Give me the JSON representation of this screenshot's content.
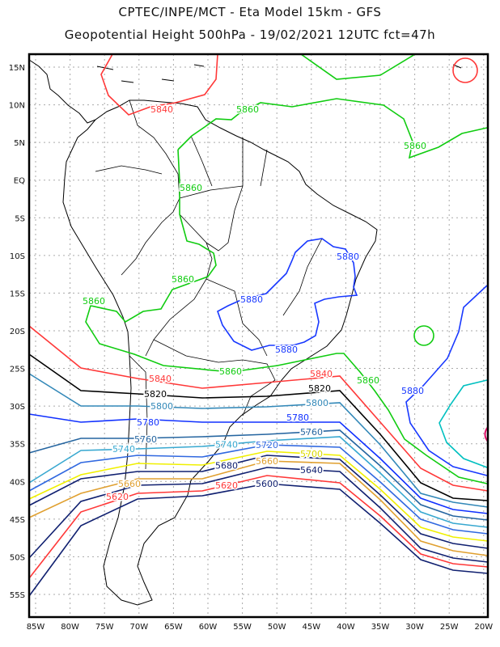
{
  "header": {
    "line1": "CPTEC/INPE/MCT -  Eta Model 15km - GFS",
    "line2": "Geopotential Height 500hPa - 19/02/2021 12UTC fct=47h"
  },
  "axes": {
    "lat_labels": [
      "15N",
      "10N",
      "5N",
      "EQ",
      "5S",
      "10S",
      "15S",
      "20S",
      "25S",
      "30S",
      "35S",
      "40S",
      "45S",
      "50S",
      "55S"
    ],
    "lon_labels": [
      "85W",
      "80W",
      "75W",
      "70W",
      "65W",
      "60W",
      "55W",
      "50W",
      "45W",
      "40W",
      "35W",
      "30W",
      "25W",
      "20W"
    ]
  },
  "colors": {
    "c5920": "#e0106a",
    "c5900": "#00c0c0",
    "c5880": "#1838ff",
    "c5860": "#10cc10",
    "c5840": "#ff3838",
    "c5820": "#000000",
    "c5800": "#3288b8",
    "c5780": "#1030ff",
    "c5760": "#2565a0",
    "c5740": "#38a8d0",
    "c5720": "#3068e0",
    "c5700": "#f0f000",
    "c5680": "#102070",
    "c5660": "#e0a030",
    "c5640": "#102070",
    "c5620": "#ff3838",
    "c5600": "#102070"
  },
  "contour_levels": [
    "5840",
    "5820",
    "5800",
    "5780",
    "5760",
    "5740",
    "5720",
    "5700",
    "5680",
    "5660",
    "5640",
    "5620",
    "5600"
  ],
  "contour_labels": [
    {
      "text": "5840",
      "color": "#ff3838"
    },
    {
      "text": "5860",
      "color": "#10cc10"
    },
    {
      "text": "5860",
      "color": "#10cc10"
    },
    {
      "text": "5860",
      "color": "#10cc10"
    },
    {
      "text": "5860",
      "color": "#10cc10"
    },
    {
      "text": "5860",
      "color": "#10cc10"
    },
    {
      "text": "5860",
      "color": "#10cc10"
    },
    {
      "text": "5860",
      "color": "#10cc10"
    },
    {
      "text": "5880",
      "color": "#1838ff"
    },
    {
      "text": "5880",
      "color": "#1838ff"
    },
    {
      "text": "5880",
      "color": "#1838ff"
    },
    {
      "text": "5880",
      "color": "#1838ff"
    },
    {
      "text": "5840",
      "color": "#ff3838"
    },
    {
      "text": "5840",
      "color": "#ff3838"
    },
    {
      "text": "5820",
      "color": "#000000"
    },
    {
      "text": "5820",
      "color": "#000000"
    },
    {
      "text": "5800",
      "color": "#3288b8"
    },
    {
      "text": "5800",
      "color": "#3288b8"
    },
    {
      "text": "5780",
      "color": "#1030ff"
    },
    {
      "text": "5780",
      "color": "#1030ff"
    },
    {
      "text": "5760",
      "color": "#2565a0"
    },
    {
      "text": "5760",
      "color": "#2565a0"
    },
    {
      "text": "5740",
      "color": "#38a8d0"
    },
    {
      "text": "5740",
      "color": "#38a8d0"
    },
    {
      "text": "5720",
      "color": "#3068e0"
    },
    {
      "text": "5700",
      "color": "#d8d800"
    },
    {
      "text": "5680",
      "color": "#102070"
    },
    {
      "text": "5660",
      "color": "#e0a030"
    },
    {
      "text": "5660",
      "color": "#e0a030"
    },
    {
      "text": "5640",
      "color": "#102070"
    },
    {
      "text": "5620",
      "color": "#ff3838"
    },
    {
      "text": "5620",
      "color": "#ff3838"
    },
    {
      "text": "5600",
      "color": "#102070"
    }
  ]
}
